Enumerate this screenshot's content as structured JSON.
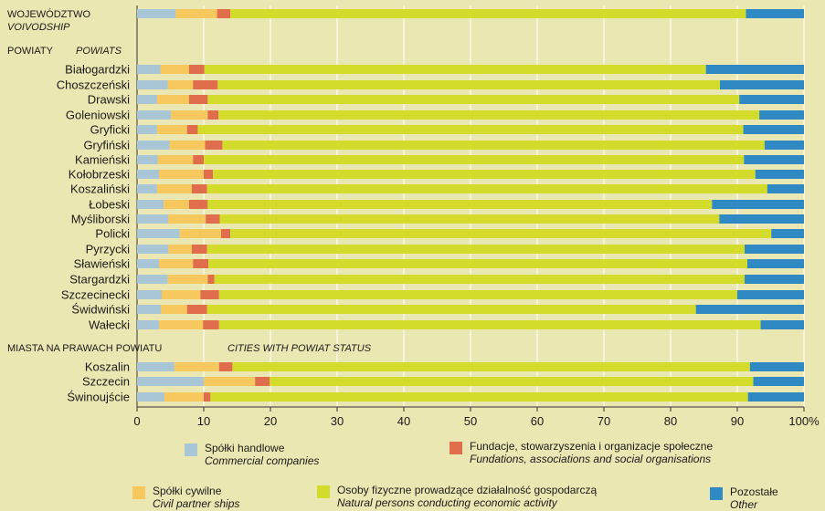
{
  "chart_data": {
    "type": "bar",
    "orientation": "horizontal",
    "stacked": "percent",
    "x_ticks": [
      "0",
      "10",
      "20",
      "30",
      "40",
      "50",
      "60",
      "70",
      "80",
      "90",
      "100%"
    ],
    "xlim": [
      0,
      100
    ],
    "grid": "vertical",
    "sections": [
      {
        "title": "WOJEWÓDZTWO",
        "subtitle": "VOIVODSHIP",
        "categories": []
      },
      {
        "title": "POWIATY",
        "subtitle": "POWIATS",
        "categories": [
          "Białogardzki",
          "Choszczeński",
          "Drawski",
          "Goleniowski",
          "Gryficki",
          "Gryfiński",
          "Kamieński",
          "Kołobrzeski",
          "Koszaliński",
          "Łobeski",
          "Myśliborski",
          "Policki",
          "Pyrzycki",
          "Sławieński",
          "Stargardzki",
          "Szczecinecki",
          "Świdwiński",
          "Wałecki"
        ]
      },
      {
        "title": "MIASTA NA PRAWACH POWIATU",
        "subtitle": "CITIES WITH POWIAT STATUS",
        "categories": [
          "Koszalin",
          "Szczecin",
          "Świnoujście"
        ]
      }
    ],
    "rows": [
      {
        "label": "",
        "values": [
          5.8,
          6.2,
          2.0,
          77.3,
          8.7
        ]
      },
      {
        "label": "Białogardzki",
        "values": [
          3.5,
          4.3,
          2.3,
          75.2,
          14.7
        ]
      },
      {
        "label": "Choszczeński",
        "values": [
          4.6,
          3.8,
          3.7,
          75.3,
          12.6
        ]
      },
      {
        "label": "Drawski",
        "values": [
          3.0,
          4.8,
          2.8,
          79.7,
          9.7
        ]
      },
      {
        "label": "Goleniowski",
        "values": [
          5.1,
          5.5,
          1.6,
          81.1,
          6.7
        ]
      },
      {
        "label": "Gryficki",
        "values": [
          3.0,
          4.5,
          1.6,
          81.8,
          9.1
        ]
      },
      {
        "label": "Gryfiński",
        "values": [
          4.9,
          5.3,
          2.6,
          81.3,
          5.9
        ]
      },
      {
        "label": "Kamieński",
        "values": [
          3.1,
          5.3,
          1.6,
          81.0,
          9.0
        ]
      },
      {
        "label": "Kołobrzeski",
        "values": [
          3.3,
          6.7,
          1.4,
          81.3,
          7.3
        ]
      },
      {
        "label": "Koszaliński",
        "values": [
          3.0,
          5.2,
          2.3,
          84.0,
          5.5
        ]
      },
      {
        "label": "Łobeski",
        "values": [
          4.0,
          3.8,
          2.8,
          75.6,
          13.8
        ]
      },
      {
        "label": "Myśliborski",
        "values": [
          4.7,
          5.6,
          2.1,
          74.9,
          12.7
        ]
      },
      {
        "label": "Policki",
        "values": [
          6.4,
          6.2,
          1.4,
          81.1,
          4.9
        ]
      },
      {
        "label": "Pyrzycki",
        "values": [
          4.7,
          3.5,
          2.3,
          80.6,
          8.9
        ]
      },
      {
        "label": "Sławieński",
        "values": [
          3.3,
          5.1,
          2.3,
          80.8,
          8.5
        ]
      },
      {
        "label": "Stargardzki",
        "values": [
          4.6,
          6.0,
          1.0,
          79.5,
          8.9
        ]
      },
      {
        "label": "Szczecinecki",
        "values": [
          3.7,
          5.8,
          2.8,
          77.7,
          10.0
        ]
      },
      {
        "label": "Świdwiński",
        "values": [
          3.6,
          3.9,
          3.0,
          73.3,
          16.2
        ]
      },
      {
        "label": "Wałecki",
        "values": [
          3.3,
          6.6,
          2.4,
          81.2,
          6.5
        ]
      },
      {
        "label": "Koszalin",
        "values": [
          5.6,
          6.7,
          2.0,
          77.6,
          8.1
        ]
      },
      {
        "label": "Szczecin",
        "values": [
          10.0,
          7.7,
          2.2,
          72.5,
          7.6
        ]
      },
      {
        "label": "Świnoujście",
        "values": [
          4.1,
          5.9,
          1.0,
          80.6,
          8.4
        ]
      }
    ],
    "series": [
      {
        "name": "Spółki handlowe",
        "name_en": "Commercial companies",
        "color": "#a9c6d6"
      },
      {
        "name": "Spółki cywilne",
        "name_en": "Civil partner ships",
        "color": "#f7c85d"
      },
      {
        "name": "Fundacje, stowarzyszenia i organizacje społeczne",
        "name_en": "Fundations, associations and social organisations",
        "color": "#e06d4b"
      },
      {
        "name": "Osoby fizyczne prowadzące działalność gospodarczą",
        "name_en": "Natural persons conducting economic activity",
        "color": "#d3dc2b"
      },
      {
        "name": "Pozostałe",
        "name_en": "Other",
        "color": "#2f8ac3"
      }
    ]
  }
}
